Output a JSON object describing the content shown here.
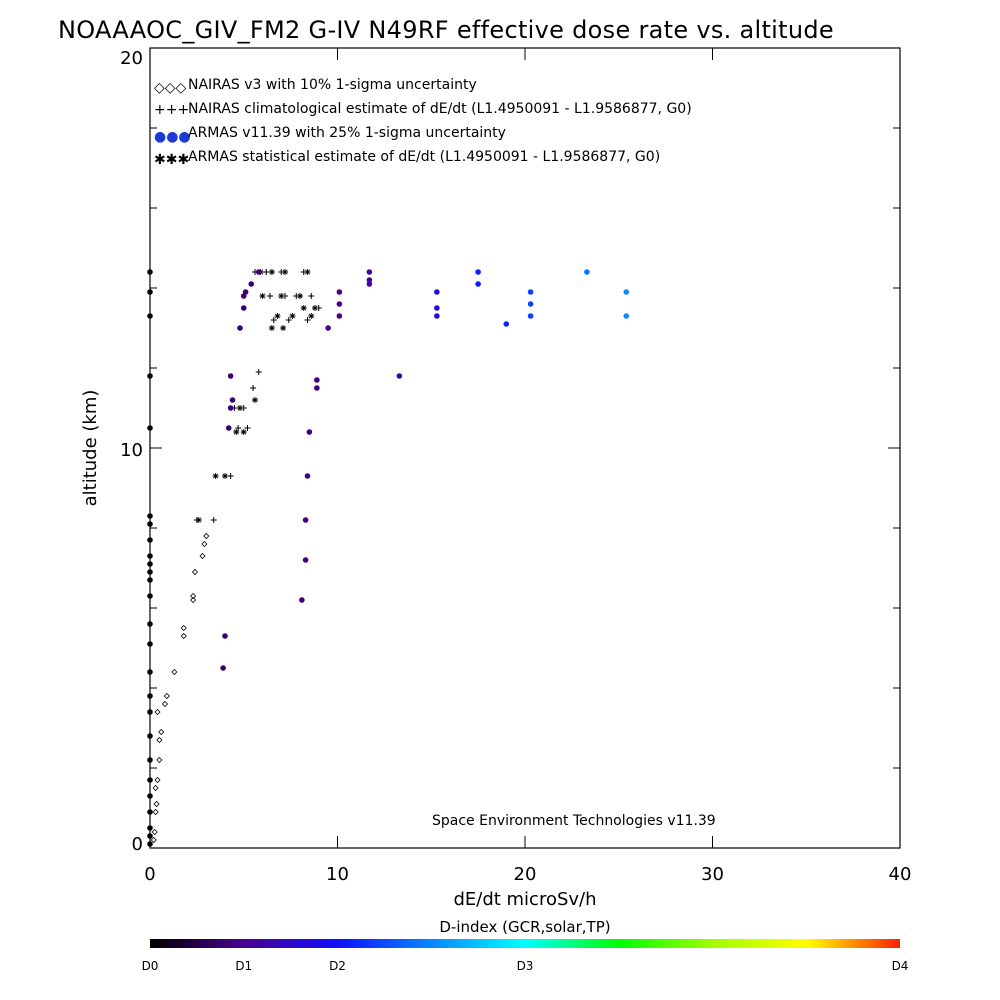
{
  "chart_data": {
    "type": "scatter",
    "title": "NOAAAOC_GIV_FM2 G-IV   N49RF  effective dose rate vs. altitude",
    "xlabel": "dE/dt microSv/h",
    "ylabel": "altitude (km)",
    "xlim": [
      0,
      40
    ],
    "ylim": [
      0,
      20
    ],
    "x_ticks": [
      "0",
      "10",
      "20",
      "30",
      "40"
    ],
    "y_ticks": [
      "0",
      "10",
      "20"
    ],
    "credit": "Space Environment Technologies v11.39",
    "legend": [
      {
        "symbol": "◇◇◇",
        "label": "NAIRAS v3 with 10% 1-sigma uncertainty"
      },
      {
        "symbol": "+++",
        "label": "NAIRAS climatological estimate of dE/dt (L1.4950091 - L1.9586877, G0)"
      },
      {
        "symbol": "●●●",
        "label": "ARMAS v11.39 with 25% 1-sigma uncertainty"
      },
      {
        "symbol": "✱✱✱",
        "label": "ARMAS statistical estimate of dE/dt (L1.4950091 - L1.9586877, G0)"
      }
    ],
    "colorbar": {
      "title": "D-index (GCR,solar,TP)",
      "labels": [
        "D0",
        "D1",
        "D2",
        "D3",
        "D4"
      ],
      "label_positions": [
        0,
        0.125,
        0.25,
        0.5,
        1.0
      ]
    },
    "series": [
      {
        "name": "NAIRAS v3 with 10% 1-sigma uncertainty",
        "marker": "diamond",
        "points": [
          [
            0.2,
            0.2
          ],
          [
            0.25,
            0.4
          ],
          [
            0.3,
            0.9
          ],
          [
            0.35,
            1.1
          ],
          [
            0.3,
            1.5
          ],
          [
            0.4,
            1.7
          ],
          [
            0.5,
            2.2
          ],
          [
            0.5,
            2.7
          ],
          [
            0.6,
            2.9
          ],
          [
            0.4,
            3.4
          ],
          [
            0.8,
            3.6
          ],
          [
            0.9,
            3.8
          ],
          [
            1.3,
            4.4
          ],
          [
            1.8,
            5.3
          ],
          [
            1.8,
            5.5
          ],
          [
            2.3,
            6.2
          ],
          [
            2.3,
            6.3
          ],
          [
            2.4,
            6.9
          ],
          [
            2.8,
            7.3
          ],
          [
            2.9,
            7.6
          ],
          [
            3.0,
            7.8
          ]
        ]
      },
      {
        "name": "NAIRAS climatological estimate of dE/dt (L1.4950091 - L1.9586877, G0)",
        "marker": "plus",
        "points": [
          [
            2.5,
            8.2
          ],
          [
            3.4,
            8.2
          ],
          [
            4.3,
            9.3
          ],
          [
            4.7,
            10.5
          ],
          [
            5.2,
            10.5
          ],
          [
            4.5,
            11.0
          ],
          [
            5.0,
            11.0
          ],
          [
            5.5,
            11.5
          ],
          [
            5.8,
            11.9
          ],
          [
            5.6,
            14.4
          ],
          [
            6.2,
            14.4
          ],
          [
            7.0,
            14.4
          ],
          [
            8.2,
            14.4
          ],
          [
            6.4,
            13.8
          ],
          [
            7.2,
            13.8
          ],
          [
            7.8,
            13.8
          ],
          [
            8.6,
            13.8
          ],
          [
            6.6,
            13.2
          ],
          [
            7.4,
            13.2
          ],
          [
            8.4,
            13.2
          ],
          [
            9.0,
            13.5
          ]
        ]
      },
      {
        "name": "ARMAS statistical estimate of dE/dt (L1.4950091 - L1.9586877, G0)",
        "marker": "asterisk",
        "points": [
          [
            2.6,
            8.2
          ],
          [
            3.5,
            9.3
          ],
          [
            4.0,
            9.3
          ],
          [
            4.6,
            10.4
          ],
          [
            5.0,
            10.4
          ],
          [
            4.8,
            11.0
          ],
          [
            5.6,
            11.2
          ],
          [
            5.9,
            14.4
          ],
          [
            6.5,
            14.4
          ],
          [
            7.2,
            14.4
          ],
          [
            8.4,
            14.4
          ],
          [
            6.0,
            13.8
          ],
          [
            7.0,
            13.8
          ],
          [
            8.0,
            13.8
          ],
          [
            6.8,
            13.3
          ],
          [
            7.6,
            13.3
          ],
          [
            8.6,
            13.3
          ],
          [
            6.5,
            13.0
          ],
          [
            7.1,
            13.0
          ],
          [
            8.2,
            13.5
          ],
          [
            8.8,
            13.5
          ]
        ]
      },
      {
        "name": "ARMAS v11.39 with 25% 1-sigma uncertainty",
        "marker": "filled-circle",
        "colored_by": "D-index",
        "points": [
          {
            "x": 0.0,
            "y": 0.1,
            "d": 0.0
          },
          {
            "x": 0.0,
            "y": 0.3,
            "d": 0.0
          },
          {
            "x": 0.0,
            "y": 0.5,
            "d": 0.0
          },
          {
            "x": 0.0,
            "y": 0.9,
            "d": 0.0
          },
          {
            "x": 0.0,
            "y": 1.3,
            "d": 0.0
          },
          {
            "x": 0.0,
            "y": 1.7,
            "d": 0.0
          },
          {
            "x": 0.0,
            "y": 2.2,
            "d": 0.0
          },
          {
            "x": 0.0,
            "y": 2.8,
            "d": 0.0
          },
          {
            "x": 0.0,
            "y": 3.4,
            "d": 0.0
          },
          {
            "x": 0.0,
            "y": 3.8,
            "d": 0.0
          },
          {
            "x": 0.0,
            "y": 4.4,
            "d": 0.0
          },
          {
            "x": 0.0,
            "y": 5.1,
            "d": 0.0
          },
          {
            "x": 0.0,
            "y": 5.6,
            "d": 0.0
          },
          {
            "x": 0.0,
            "y": 6.3,
            "d": 0.0
          },
          {
            "x": 0.0,
            "y": 6.7,
            "d": 0.0
          },
          {
            "x": 0.0,
            "y": 6.9,
            "d": 0.0
          },
          {
            "x": 0.0,
            "y": 7.1,
            "d": 0.0
          },
          {
            "x": 0.0,
            "y": 7.3,
            "d": 0.0
          },
          {
            "x": 0.0,
            "y": 7.7,
            "d": 0.0
          },
          {
            "x": 0.0,
            "y": 8.1,
            "d": 0.0
          },
          {
            "x": 0.0,
            "y": 8.3,
            "d": 0.0
          },
          {
            "x": 0.0,
            "y": 10.5,
            "d": 0.0
          },
          {
            "x": 0.0,
            "y": 11.8,
            "d": 0.0
          },
          {
            "x": 0.0,
            "y": 13.3,
            "d": 0.0
          },
          {
            "x": 0.0,
            "y": 13.9,
            "d": 0.0
          },
          {
            "x": 0.0,
            "y": 14.4,
            "d": 0.0
          },
          {
            "x": 3.9,
            "y": 4.5,
            "d": 0.1
          },
          {
            "x": 4.0,
            "y": 5.3,
            "d": 0.1
          },
          {
            "x": 4.2,
            "y": 10.5,
            "d": 0.1
          },
          {
            "x": 4.3,
            "y": 11.0,
            "d": 0.1
          },
          {
            "x": 4.4,
            "y": 11.2,
            "d": 0.1
          },
          {
            "x": 4.3,
            "y": 11.8,
            "d": 0.1
          },
          {
            "x": 4.8,
            "y": 13.0,
            "d": 0.1
          },
          {
            "x": 5.0,
            "y": 13.5,
            "d": 0.1
          },
          {
            "x": 5.0,
            "y": 13.8,
            "d": 0.1
          },
          {
            "x": 5.1,
            "y": 13.9,
            "d": 0.1
          },
          {
            "x": 5.4,
            "y": 14.1,
            "d": 0.1
          },
          {
            "x": 5.8,
            "y": 14.4,
            "d": 0.1
          },
          {
            "x": 8.1,
            "y": 6.2,
            "d": 0.11
          },
          {
            "x": 8.3,
            "y": 7.2,
            "d": 0.11
          },
          {
            "x": 8.3,
            "y": 8.2,
            "d": 0.11
          },
          {
            "x": 8.4,
            "y": 9.3,
            "d": 0.11
          },
          {
            "x": 8.5,
            "y": 10.4,
            "d": 0.11
          },
          {
            "x": 8.9,
            "y": 11.5,
            "d": 0.11
          },
          {
            "x": 8.9,
            "y": 11.7,
            "d": 0.11
          },
          {
            "x": 9.5,
            "y": 13.0,
            "d": 0.12
          },
          {
            "x": 10.1,
            "y": 13.3,
            "d": 0.12
          },
          {
            "x": 10.1,
            "y": 13.6,
            "d": 0.12
          },
          {
            "x": 10.1,
            "y": 13.9,
            "d": 0.12
          },
          {
            "x": 11.7,
            "y": 14.1,
            "d": 0.14
          },
          {
            "x": 11.7,
            "y": 14.2,
            "d": 0.14
          },
          {
            "x": 11.7,
            "y": 14.4,
            "d": 0.14
          },
          {
            "x": 13.3,
            "y": 11.8,
            "d": 0.14
          },
          {
            "x": 15.3,
            "y": 13.3,
            "d": 0.22
          },
          {
            "x": 15.3,
            "y": 13.5,
            "d": 0.22
          },
          {
            "x": 15.3,
            "y": 13.9,
            "d": 0.22
          },
          {
            "x": 17.5,
            "y": 14.1,
            "d": 0.26
          },
          {
            "x": 17.5,
            "y": 14.4,
            "d": 0.26
          },
          {
            "x": 19.0,
            "y": 13.1,
            "d": 0.27
          },
          {
            "x": 20.3,
            "y": 13.3,
            "d": 0.3
          },
          {
            "x": 20.3,
            "y": 13.6,
            "d": 0.3
          },
          {
            "x": 20.3,
            "y": 13.9,
            "d": 0.3
          },
          {
            "x": 23.3,
            "y": 14.4,
            "d": 0.36
          },
          {
            "x": 25.4,
            "y": 13.9,
            "d": 0.38
          },
          {
            "x": 25.4,
            "y": 13.3,
            "d": 0.38
          }
        ]
      }
    ]
  }
}
